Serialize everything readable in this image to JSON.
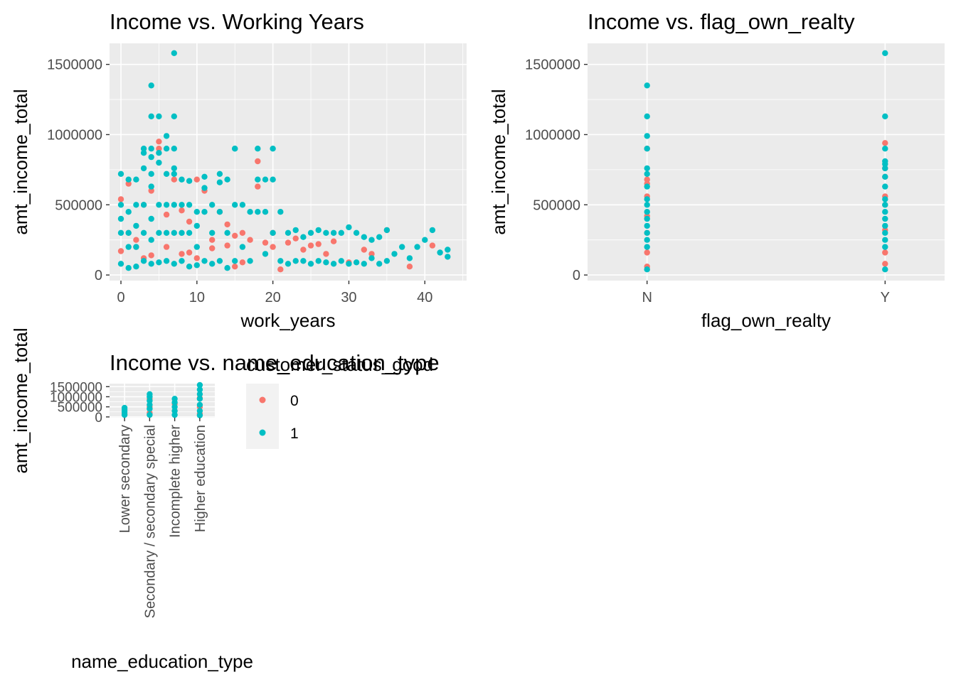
{
  "chart_data": [
    {
      "type": "scatter",
      "title": "Income vs. Working Years",
      "xlabel": "work_years",
      "ylabel": "amt_income_total",
      "xlim": [
        -1.5,
        45.5
      ],
      "ylim": [
        -40000,
        1650000
      ],
      "x_ticks": [
        0,
        10,
        20,
        30,
        40
      ],
      "x_tick_labels": [
        "0",
        "10",
        "20",
        "30",
        "40"
      ],
      "y_ticks": [
        0,
        500000,
        1000000,
        1500000
      ],
      "y_tick_labels": [
        "0",
        "500000",
        "1000000",
        "1500000"
      ],
      "grid": true,
      "series": [
        {
          "name": "0",
          "color": "#F8766D",
          "x": [
            0,
            1,
            1,
            2,
            3,
            4,
            5,
            5,
            6,
            7,
            8,
            9,
            10,
            11,
            12,
            13,
            14,
            15,
            16,
            17,
            18,
            18,
            19,
            20,
            21,
            22,
            23,
            24,
            25,
            27,
            28,
            30,
            32,
            35,
            38,
            41,
            0,
            2,
            4,
            6,
            8,
            10,
            12,
            14,
            16,
            3,
            9,
            15,
            20,
            26,
            33
          ],
          "y": [
            540000,
            650000,
            300000,
            200000,
            500000,
            600000,
            950000,
            900000,
            430000,
            680000,
            460000,
            380000,
            680000,
            600000,
            250000,
            450000,
            360000,
            280000,
            300000,
            250000,
            810000,
            630000,
            230000,
            300000,
            40000,
            230000,
            260000,
            180000,
            210000,
            150000,
            240000,
            90000,
            180000,
            320000,
            60000,
            210000,
            170000,
            250000,
            140000,
            200000,
            150000,
            120000,
            190000,
            210000,
            90000,
            120000,
            160000,
            60000,
            200000,
            220000,
            150000
          ]
        },
        {
          "name": "1",
          "color": "#00BFC4",
          "x": [
            0,
            0,
            0,
            0,
            0,
            1,
            1,
            1,
            1,
            1,
            2,
            2,
            2,
            2,
            2,
            3,
            3,
            3,
            3,
            3,
            4,
            4,
            4,
            4,
            4,
            4,
            5,
            5,
            5,
            5,
            5,
            6,
            6,
            6,
            6,
            6,
            7,
            7,
            7,
            7,
            7,
            7,
            8,
            8,
            8,
            8,
            9,
            9,
            9,
            9,
            10,
            10,
            10,
            10,
            11,
            11,
            11,
            12,
            12,
            12,
            13,
            13,
            13,
            14,
            14,
            14,
            15,
            15,
            15,
            16,
            16,
            17,
            17,
            18,
            18,
            19,
            19,
            20,
            20,
            21,
            21,
            22,
            22,
            23,
            23,
            24,
            24,
            25,
            25,
            26,
            26,
            27,
            27,
            28,
            28,
            29,
            29,
            30,
            30,
            31,
            31,
            32,
            32,
            33,
            33,
            34,
            34,
            35,
            35,
            36,
            37,
            38,
            39,
            40,
            41,
            42,
            43,
            43,
            4,
            4,
            5,
            6,
            7,
            7,
            3,
            4,
            15,
            20,
            19,
            18,
            13,
            11
          ],
          "y": [
            720000,
            500000,
            400000,
            300000,
            80000,
            680000,
            450000,
            300000,
            200000,
            50000,
            680000,
            500000,
            350000,
            200000,
            60000,
            900000,
            760000,
            500000,
            300000,
            100000,
            1350000,
            1130000,
            630000,
            400000,
            250000,
            80000,
            1130000,
            800000,
            500000,
            300000,
            90000,
            990000,
            720000,
            500000,
            300000,
            100000,
            1580000,
            1130000,
            720000,
            500000,
            300000,
            80000,
            680000,
            500000,
            300000,
            100000,
            670000,
            500000,
            300000,
            60000,
            450000,
            350000,
            200000,
            70000,
            620000,
            450000,
            100000,
            500000,
            300000,
            80000,
            720000,
            450000,
            100000,
            680000,
            300000,
            50000,
            900000,
            500000,
            100000,
            500000,
            200000,
            450000,
            100000,
            680000,
            450000,
            450000,
            150000,
            680000,
            300000,
            450000,
            100000,
            300000,
            80000,
            320000,
            100000,
            270000,
            100000,
            300000,
            80000,
            320000,
            100000,
            300000,
            90000,
            300000,
            80000,
            300000,
            100000,
            340000,
            80000,
            300000,
            90000,
            270000,
            80000,
            250000,
            120000,
            270000,
            80000,
            320000,
            100000,
            150000,
            200000,
            120000,
            200000,
            250000,
            320000,
            160000,
            180000,
            130000,
            900000,
            840000,
            870000,
            900000,
            900000,
            760000,
            870000,
            720000,
            900000,
            900000,
            680000,
            900000,
            660000,
            700000
          ]
        }
      ]
    },
    {
      "type": "scatter",
      "title": "Income vs. flag_own_realty",
      "xlabel": "flag_own_realty",
      "ylabel": "amt_income_total",
      "categories": [
        "N",
        "Y"
      ],
      "ylim": [
        -40000,
        1650000
      ],
      "y_ticks": [
        0,
        500000,
        1000000,
        1500000
      ],
      "y_tick_labels": [
        "0",
        "500000",
        "1000000",
        "1500000"
      ],
      "grid": true,
      "series": [
        {
          "name": "0",
          "color": "#F8766D",
          "x": [
            "N",
            "N",
            "N",
            "N",
            "N",
            "N",
            "N",
            "N",
            "Y",
            "Y",
            "Y",
            "Y",
            "Y",
            "Y",
            "Y",
            "Y"
          ],
          "y": [
            900000,
            680000,
            650000,
            560000,
            420000,
            300000,
            160000,
            60000,
            940000,
            760000,
            700000,
            560000,
            500000,
            320000,
            160000,
            80000
          ]
        },
        {
          "name": "1",
          "color": "#00BFC4",
          "x": [
            "N",
            "N",
            "N",
            "N",
            "N",
            "N",
            "N",
            "N",
            "N",
            "N",
            "N",
            "N",
            "N",
            "N",
            "N",
            "N",
            "Y",
            "Y",
            "Y",
            "Y",
            "Y",
            "Y",
            "Y",
            "Y",
            "Y",
            "Y",
            "Y",
            "Y",
            "Y",
            "Y",
            "Y",
            "Y",
            "Y"
          ],
          "y": [
            1350000,
            1130000,
            990000,
            900000,
            760000,
            720000,
            630000,
            540000,
            500000,
            450000,
            400000,
            350000,
            300000,
            250000,
            200000,
            40000,
            1580000,
            1130000,
            900000,
            810000,
            790000,
            760000,
            700000,
            630000,
            540000,
            500000,
            450000,
            400000,
            350000,
            300000,
            250000,
            200000,
            40000
          ]
        }
      ]
    },
    {
      "type": "scatter",
      "title": "Income vs. name_education_type",
      "xlabel": "name_education_type",
      "ylabel": "amt_income_total",
      "categories": [
        "Lower secondary",
        "Secondary / secondary special",
        "Incomplete higher",
        "Higher education"
      ],
      "ylim": [
        -40000,
        1650000
      ],
      "y_ticks": [
        0,
        500000,
        1000000,
        1500000
      ],
      "y_tick_labels": [
        "0",
        "500000",
        "1000000",
        "1500000"
      ],
      "grid": true,
      "series": [
        {
          "name": "0",
          "color": "#F8766D",
          "x": [
            "Lower secondary",
            "Secondary / secondary special",
            "Secondary / secondary special",
            "Secondary / secondary special",
            "Incomplete higher",
            "Incomplete higher",
            "Higher education",
            "Higher education",
            "Higher education"
          ],
          "y": [
            150000,
            900000,
            500000,
            200000,
            650000,
            300000,
            940000,
            500000,
            150000
          ]
        },
        {
          "name": "1",
          "color": "#00BFC4",
          "x": [
            "Lower secondary",
            "Lower secondary",
            "Lower secondary",
            "Lower secondary",
            "Secondary / secondary special",
            "Secondary / secondary special",
            "Secondary / secondary special",
            "Secondary / secondary special",
            "Secondary / secondary special",
            "Secondary / secondary special",
            "Incomplete higher",
            "Incomplete higher",
            "Incomplete higher",
            "Incomplete higher",
            "Incomplete higher",
            "Higher education",
            "Higher education",
            "Higher education",
            "Higher education",
            "Higher education",
            "Higher education",
            "Higher education"
          ],
          "y": [
            450000,
            350000,
            250000,
            100000,
            1130000,
            1000000,
            800000,
            600000,
            400000,
            100000,
            900000,
            720000,
            500000,
            300000,
            100000,
            1580000,
            1350000,
            1130000,
            900000,
            600000,
            300000,
            80000
          ]
        }
      ]
    }
  ],
  "legend": {
    "title": "customer_status_good",
    "entries": [
      {
        "label": "0",
        "color": "#F8766D"
      },
      {
        "label": "1",
        "color": "#00BFC4"
      }
    ]
  }
}
